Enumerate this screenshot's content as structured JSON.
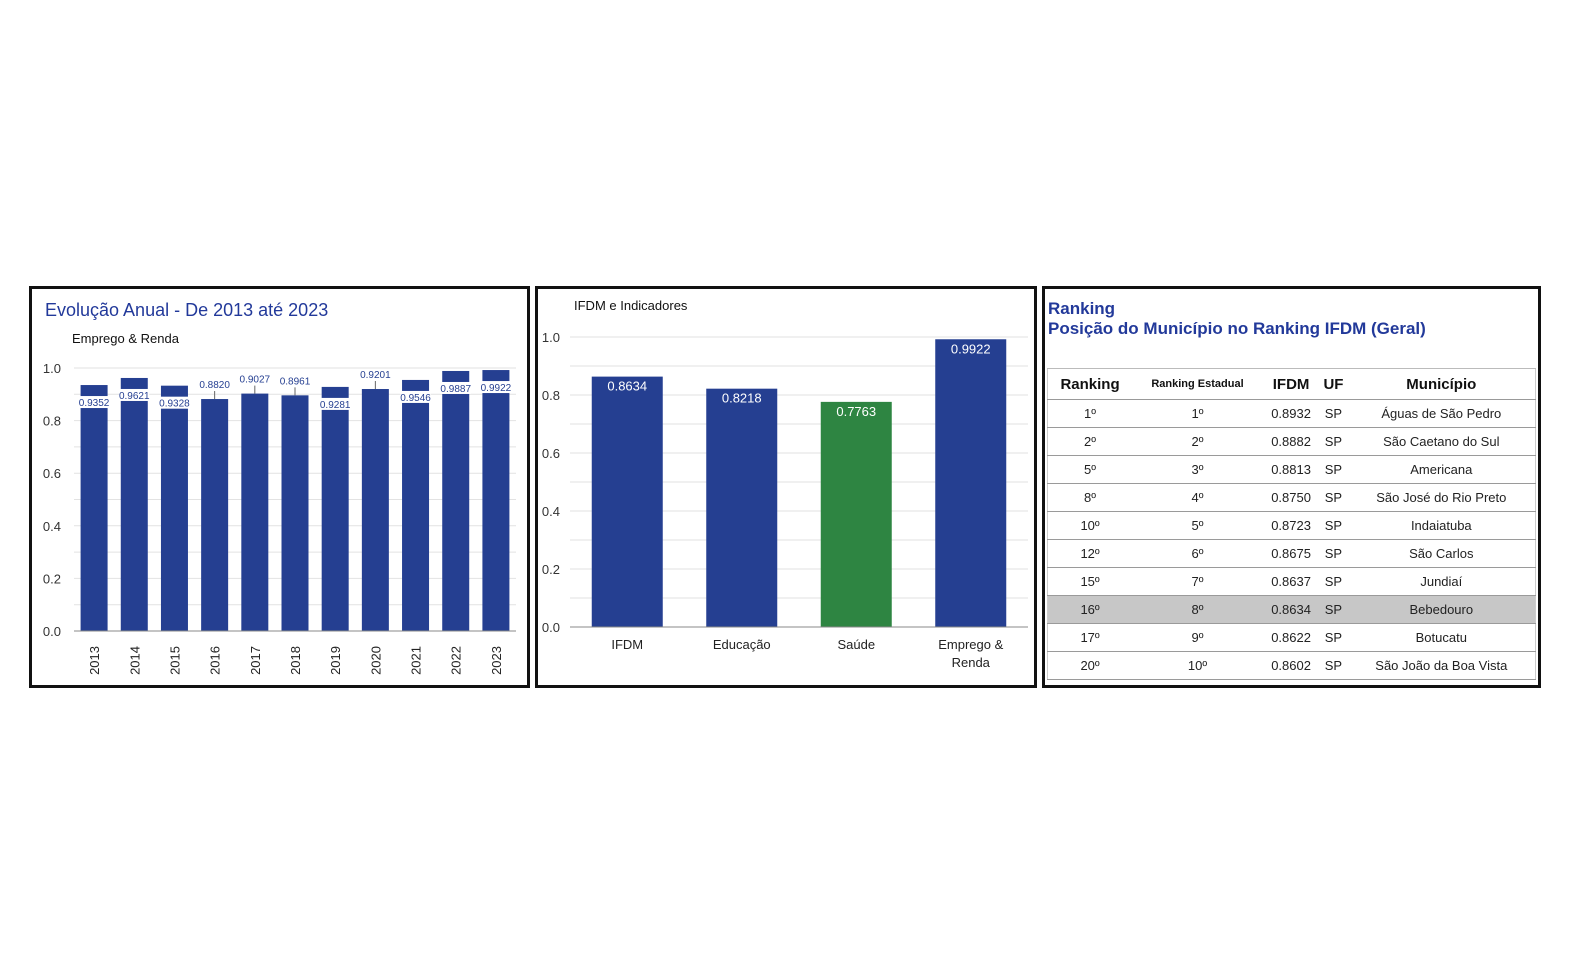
{
  "chart_data": [
    {
      "type": "bar",
      "title": "Evolução Anual - De 2013 até 2023",
      "subtitle": "Emprego & Renda",
      "categories": [
        "2013",
        "2014",
        "2015",
        "2016",
        "2017",
        "2018",
        "2019",
        "2020",
        "2021",
        "2022",
        "2023"
      ],
      "values": [
        0.9352,
        0.9621,
        0.9328,
        0.882,
        0.9027,
        0.8961,
        0.9281,
        0.9201,
        0.9546,
        0.9887,
        0.9922
      ],
      "labels": [
        "0.9352",
        "0.9621",
        "0.9328",
        "0.8820",
        "0.9027",
        "0.8961",
        "0.9281",
        "0.9201",
        "0.9546",
        "0.9887",
        "0.9922"
      ],
      "yticks": [
        "0.0",
        "0.2",
        "0.4",
        "0.6",
        "0.8",
        "1.0"
      ],
      "ylim": [
        0,
        1.0
      ],
      "grid": true,
      "color": "#253f91"
    },
    {
      "type": "bar",
      "title": "IFDM e Indicadores",
      "categories": [
        "IFDM",
        "Educação",
        "Saúde",
        "Emprego &\nRenda"
      ],
      "values": [
        0.8634,
        0.8218,
        0.7763,
        0.9922
      ],
      "labels": [
        "0.8634",
        "0.8218",
        "0.7763",
        "0.9922"
      ],
      "colors": [
        "#253f91",
        "#253f91",
        "#2e8542",
        "#253f91"
      ],
      "yticks": [
        "0.0",
        "0.2",
        "0.4",
        "0.6",
        "0.8",
        "1.0"
      ],
      "ylim": [
        0,
        1.0
      ],
      "grid": true
    },
    {
      "type": "table",
      "title": "Ranking",
      "subtitle": "Posição do Município no Ranking IFDM (Geral)",
      "columns": [
        "Ranking",
        "Ranking Estadual",
        "IFDM",
        "UF",
        "Município"
      ],
      "rows": [
        [
          "1º",
          "1º",
          "0.8932",
          "SP",
          "Águas de São Pedro"
        ],
        [
          "2º",
          "2º",
          "0.8882",
          "SP",
          "São Caetano do Sul"
        ],
        [
          "5º",
          "3º",
          "0.8813",
          "SP",
          "Americana"
        ],
        [
          "8º",
          "4º",
          "0.8750",
          "SP",
          "São José do Rio Preto"
        ],
        [
          "10º",
          "5º",
          "0.8723",
          "SP",
          "Indaiatuba"
        ],
        [
          "12º",
          "6º",
          "0.8675",
          "SP",
          "São Carlos"
        ],
        [
          "15º",
          "7º",
          "0.8637",
          "SP",
          "Jundiaí"
        ],
        [
          "16º",
          "8º",
          "0.8634",
          "SP",
          "Bebedouro"
        ],
        [
          "17º",
          "9º",
          "0.8622",
          "SP",
          "Botucatu"
        ],
        [
          "20º",
          "10º",
          "0.8602",
          "SP",
          "São João da Boa Vista"
        ]
      ],
      "highlight_row": 7,
      "highlight_color": "#c7c7c7"
    }
  ]
}
